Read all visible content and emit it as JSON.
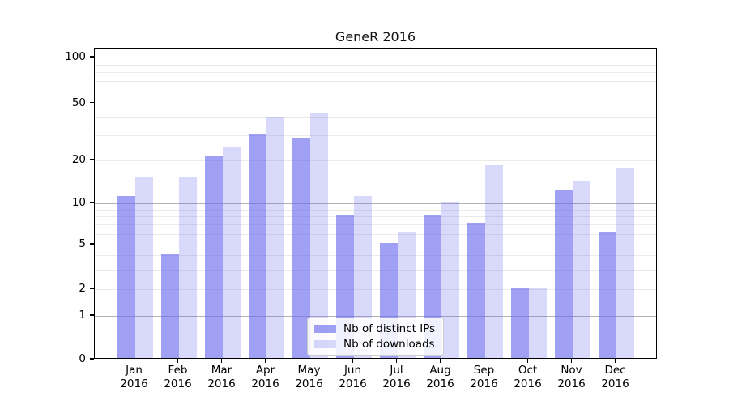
{
  "chart_data": {
    "type": "bar",
    "title": "GeneR 2016",
    "categories": [
      "Jan",
      "Feb",
      "Mar",
      "Apr",
      "May",
      "Jun",
      "Jul",
      "Aug",
      "Sep",
      "Oct",
      "Nov",
      "Dec"
    ],
    "year_label": "2016",
    "series": [
      {
        "name": "Nb of distinct IPs",
        "color": "rgba(102,102,238,0.62)",
        "values": [
          11,
          4,
          21,
          30,
          28,
          8,
          5,
          8,
          7,
          2,
          12,
          6
        ]
      },
      {
        "name": "Nb of downloads",
        "color": "rgba(102,102,238,0.25)",
        "values": [
          15,
          15,
          24,
          39,
          42,
          11,
          6,
          10,
          18,
          2,
          14,
          17
        ]
      }
    ],
    "yticks": [
      0,
      1,
      2,
      5,
      10,
      20,
      50,
      100
    ],
    "ylim": [
      0,
      100
    ],
    "yscale": "log-like (labeled ticks 0,1,2,5,10,20,50,100)",
    "grid": true,
    "legend_position": "lower center",
    "major_grid_color": "#b2b2b2",
    "minor_grid_color": "#eaeaea"
  }
}
